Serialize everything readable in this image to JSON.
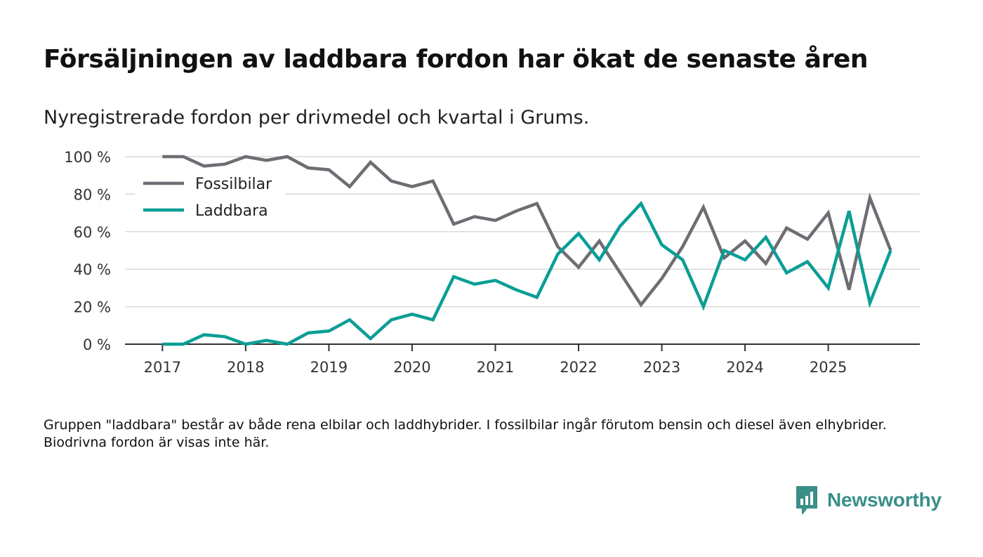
{
  "title": "Försäljningen av laddbara fordon har ökat de senaste åren",
  "subtitle": "Nyregistrerade fordon per drivmedel och kvartal i Grums.",
  "footnote": "Gruppen \"laddbara\" består av både rena elbilar och laddhybrider. I fossilbilar ingår förutom bensin och diesel även elhybrider. Biodrivna fordon är visas inte här.",
  "brand": {
    "name": "Newsworthy",
    "color": "#3a8f88"
  },
  "chart_data": {
    "type": "line",
    "title": "Försäljningen av laddbara fordon har ökat de senaste åren",
    "subtitle": "Nyregistrerade fordon per drivmedel och kvartal i Grums.",
    "xlabel": "",
    "ylabel": "",
    "ylim": [
      0,
      100
    ],
    "y_ticks": [
      0,
      20,
      40,
      60,
      80,
      100
    ],
    "y_tick_labels": [
      "0 %",
      "20 %",
      "40 %",
      "60 %",
      "80 %",
      "100 %"
    ],
    "x_ticks": [
      2017,
      2018,
      2019,
      2020,
      2021,
      2022,
      2023,
      2024,
      2025
    ],
    "x_tick_labels": [
      "2017",
      "2018",
      "2019",
      "2020",
      "2021",
      "2022",
      "2023",
      "2024",
      "2025"
    ],
    "xlim": [
      2016.55,
      2026.1
    ],
    "grid": true,
    "legend_position": "top-left",
    "x": [
      2017.0,
      2017.25,
      2017.5,
      2017.75,
      2018.0,
      2018.25,
      2018.5,
      2018.75,
      2019.0,
      2019.25,
      2019.5,
      2019.75,
      2020.0,
      2020.25,
      2020.5,
      2020.75,
      2021.0,
      2021.25,
      2021.5,
      2021.75,
      2022.0,
      2022.25,
      2022.5,
      2022.75,
      2023.0,
      2023.25,
      2023.5,
      2023.75,
      2024.0,
      2024.25,
      2024.5,
      2024.75,
      2025.0,
      2025.25,
      2025.5,
      2025.75
    ],
    "series": [
      {
        "name": "Fossilbilar",
        "color": "#6e6d73",
        "values": [
          100,
          100,
          95,
          96,
          100,
          98,
          100,
          94,
          93,
          84,
          97,
          87,
          84,
          87,
          64,
          68,
          66,
          71,
          75,
          52,
          41,
          55,
          38,
          21,
          35,
          52,
          73,
          46,
          55,
          43,
          62,
          56,
          70,
          29,
          78,
          50
        ]
      },
      {
        "name": "Laddbara",
        "color": "#0a9e96",
        "values": [
          0,
          0,
          5,
          4,
          0,
          2,
          0,
          6,
          7,
          13,
          3,
          13,
          16,
          13,
          36,
          32,
          34,
          29,
          25,
          48,
          59,
          45,
          63,
          75,
          53,
          45,
          20,
          50,
          45,
          57,
          38,
          44,
          30,
          71,
          22,
          50
        ]
      }
    ]
  }
}
